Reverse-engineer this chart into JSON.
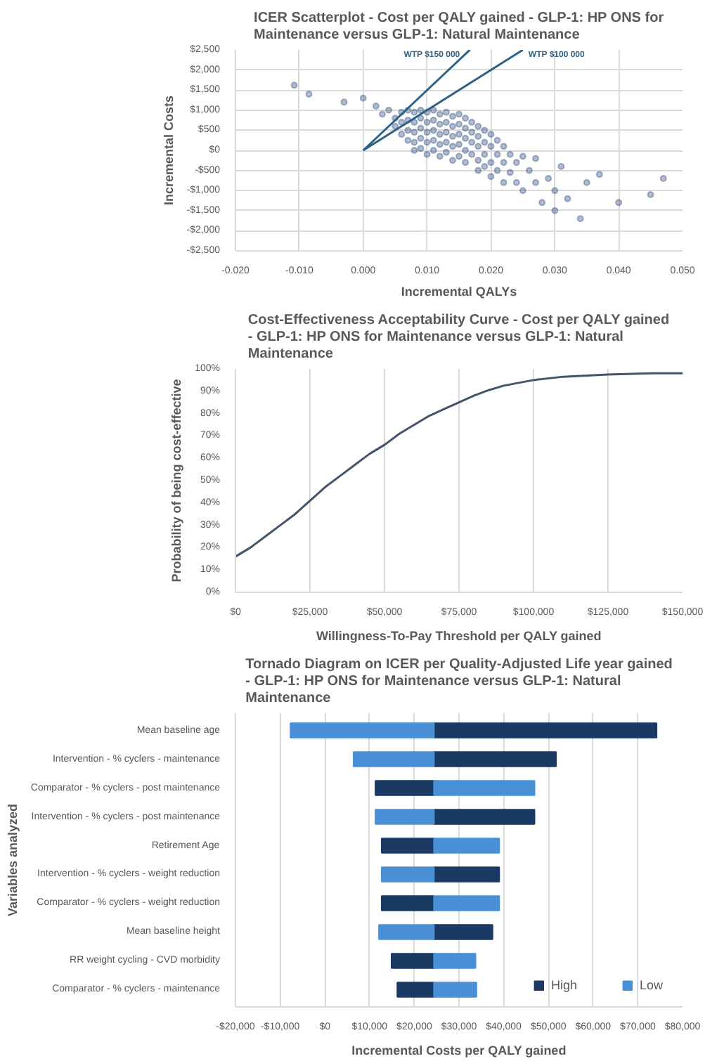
{
  "chart_data": [
    {
      "type": "scatter",
      "title": "ICER Scatterplot - Cost per QALY gained - GLP-1: HP ONS for Maintenance versus GLP-1: Natural Maintenance",
      "xlabel": "Incremental QALYs",
      "ylabel": "Incremental Costs",
      "grid": true,
      "xlim": [
        -0.02,
        0.05
      ],
      "xticks": [
        {
          "value": -0.02,
          "label": "-0.020"
        },
        {
          "value": -0.01,
          "label": "-0.010"
        },
        {
          "value": 0,
          "label": "0.000"
        },
        {
          "value": 0.01,
          "label": "0.010"
        },
        {
          "value": 0.02,
          "label": "0.020"
        },
        {
          "value": 0.03,
          "label": "0.030"
        },
        {
          "value": 0.04,
          "label": "0.040"
        },
        {
          "value": 0.05,
          "label": "0.050"
        }
      ],
      "ylim": [
        -2500,
        2500
      ],
      "yticks": [
        {
          "value": -2500,
          "label": "-$2,500"
        },
        {
          "value": -2000,
          "label": "-$2,000"
        },
        {
          "value": -1500,
          "label": "-$1,500"
        },
        {
          "value": -1000,
          "label": "-$1,000"
        },
        {
          "value": -500,
          "label": "-$500"
        },
        {
          "value": 0,
          "label": "$0"
        },
        {
          "value": 500,
          "label": "$500"
        },
        {
          "value": 1000,
          "label": "$1,000"
        },
        {
          "value": 1500,
          "label": "$1,500"
        },
        {
          "value": 2000,
          "label": "$2,000"
        },
        {
          "value": 2500,
          "label": "$2,500"
        }
      ],
      "series": [
        {
          "type": "scatter",
          "marker": "circle",
          "color": "#1f3f75",
          "x": [
            -0.0108,
            -0.0085,
            -0.003,
            0.0,
            0.002,
            0.003,
            0.004,
            0.005,
            0.005,
            0.006,
            0.006,
            0.006,
            0.007,
            0.007,
            0.007,
            0.007,
            0.008,
            0.008,
            0.008,
            0.008,
            0.008,
            0.009,
            0.009,
            0.009,
            0.009,
            0.009,
            0.01,
            0.01,
            0.01,
            0.01,
            0.01,
            0.011,
            0.011,
            0.011,
            0.011,
            0.011,
            0.012,
            0.012,
            0.012,
            0.012,
            0.012,
            0.013,
            0.013,
            0.013,
            0.013,
            0.013,
            0.014,
            0.014,
            0.014,
            0.014,
            0.014,
            0.015,
            0.015,
            0.015,
            0.015,
            0.015,
            0.016,
            0.016,
            0.016,
            0.016,
            0.016,
            0.017,
            0.017,
            0.017,
            0.017,
            0.018,
            0.018,
            0.018,
            0.018,
            0.018,
            0.019,
            0.019,
            0.019,
            0.019,
            0.02,
            0.02,
            0.02,
            0.02,
            0.021,
            0.021,
            0.021,
            0.022,
            0.022,
            0.022,
            0.023,
            0.023,
            0.024,
            0.024,
            0.025,
            0.025,
            0.026,
            0.027,
            0.027,
            0.028,
            0.029,
            0.03,
            0.03,
            0.031,
            0.032,
            0.034,
            0.035,
            0.037,
            0.04,
            0.045,
            0.047
          ],
          "values": [
            1620,
            1400,
            1200,
            1300,
            1100,
            900,
            1000,
            800,
            600,
            950,
            700,
            400,
            1000,
            750,
            500,
            250,
            950,
            700,
            450,
            200,
            0,
            1000,
            800,
            550,
            300,
            50,
            950,
            700,
            450,
            200,
            -100,
            1000,
            750,
            500,
            250,
            0,
            900,
            650,
            400,
            150,
            -150,
            950,
            700,
            450,
            200,
            -50,
            850,
            600,
            350,
            100,
            -250,
            900,
            650,
            400,
            150,
            -150,
            800,
            550,
            300,
            0,
            -300,
            700,
            450,
            200,
            -100,
            600,
            350,
            100,
            -250,
            -500,
            500,
            200,
            -100,
            -400,
            400,
            100,
            -300,
            -650,
            250,
            -100,
            -500,
            100,
            -300,
            -800,
            -100,
            -550,
            -300,
            -800,
            -150,
            -1000,
            -500,
            -800,
            -200,
            -1300,
            -700,
            -1000,
            -1500,
            -400,
            -1200,
            -1700,
            -800,
            -600,
            -1300,
            -1100,
            -700
          ]
        },
        {
          "type": "line",
          "name": "WTP $150 000",
          "color": "#2e6285",
          "x": [
            0,
            0.0167
          ],
          "values": [
            0,
            2500
          ]
        },
        {
          "type": "line",
          "name": "WTP $100 000",
          "color": "#2e6285",
          "x": [
            0,
            0.025
          ],
          "values": [
            0,
            2500
          ]
        }
      ]
    },
    {
      "type": "line",
      "title": "Cost-Effectiveness Acceptability Curve - Cost per QALY gained - GLP-1: HP ONS for Maintenance versus GLP-1: Natural Maintenance",
      "xlabel": "Willingness-To-Pay Threshold per QALY gained",
      "ylabel": "Probability of being cost-effective",
      "grid": "x",
      "xlim": [
        0,
        150000
      ],
      "xticks": [
        {
          "value": 0,
          "label": "$0"
        },
        {
          "value": 25000,
          "label": "$25,000"
        },
        {
          "value": 50000,
          "label": "$50,000"
        },
        {
          "value": 75000,
          "label": "$75,000"
        },
        {
          "value": 100000,
          "label": "$100,000"
        },
        {
          "value": 125000,
          "label": "$125,000"
        },
        {
          "value": 150000,
          "label": "$150,000"
        }
      ],
      "ylim": [
        0,
        100
      ],
      "yticks": [
        {
          "value": 0,
          "label": "0%"
        },
        {
          "value": 10,
          "label": "10%"
        },
        {
          "value": 20,
          "label": "20%"
        },
        {
          "value": 30,
          "label": "30%"
        },
        {
          "value": 40,
          "label": "40%"
        },
        {
          "value": 50,
          "label": "50%"
        },
        {
          "value": 60,
          "label": "60%"
        },
        {
          "value": 70,
          "label": "70%"
        },
        {
          "value": 80,
          "label": "80%"
        },
        {
          "value": 90,
          "label": "90%"
        },
        {
          "value": 100,
          "label": "100%"
        }
      ],
      "series": [
        {
          "color": "#44546a",
          "x": [
            0,
            5000,
            10000,
            15000,
            20000,
            25000,
            30000,
            35000,
            40000,
            45000,
            50000,
            55000,
            60000,
            65000,
            70000,
            75000,
            80000,
            85000,
            90000,
            100000,
            110000,
            125000,
            140000,
            150000
          ],
          "values": [
            16,
            20,
            25,
            30,
            35,
            41,
            47,
            52,
            57,
            62,
            66,
            71,
            75,
            79,
            82,
            85,
            88,
            90.5,
            92.5,
            95,
            96.5,
            97.5,
            98,
            98
          ]
        }
      ]
    },
    {
      "type": "bar",
      "orientation": "horizontal",
      "title": "Tornado Diagram on ICER per Quality-Adjusted Life year gained - GLP-1: HP ONS for Maintenance versus GLP-1: Natural Maintenance",
      "xlabel": "Incremental Costs per QALY gained",
      "ylabel": "Variables analyzed",
      "grid": "x",
      "legend": "bottom right",
      "categories": [
        "Mean baseline age",
        "Intervention - % cyclers - maintenance",
        "Comparator - % cyclers - post maintenance",
        "Intervention - % cyclers - post maintenance",
        "Retirement Age",
        "Intervention - % cyclers - weight reduction",
        "Comparator - % cyclers - weight reduction",
        "Mean baseline height",
        "RR weight cycling - CVD morbidity",
        "Comparator - % cyclers - maintenance"
      ],
      "xlim": [
        -20000,
        80000
      ],
      "xticks": [
        {
          "value": -20000,
          "label": "-$20,000"
        },
        {
          "value": -10000,
          "label": "-$10,000"
        },
        {
          "value": 0,
          "label": "$0"
        },
        {
          "value": 10000,
          "label": "$10,000"
        },
        {
          "value": 20000,
          "label": "$20,000"
        },
        {
          "value": 30000,
          "label": "$30,000"
        },
        {
          "value": 40000,
          "label": "$40,000"
        },
        {
          "value": 50000,
          "label": "$50,000"
        },
        {
          "value": 60000,
          "label": "$60,000"
        },
        {
          "value": 70000,
          "label": "$70,000"
        },
        {
          "value": 80000,
          "label": "$80,000"
        }
      ],
      "series": [
        {
          "name": "High",
          "color": "#1a3a63",
          "base": [
            24400,
            24400,
            11300,
            24400,
            12700,
            24400,
            12700,
            24400,
            14900,
            16200
          ],
          "values": [
            49800,
            27300,
            13100,
            22500,
            11700,
            14600,
            11700,
            13100,
            9500,
            8200
          ]
        },
        {
          "name": "Low",
          "color": "#4a90d6",
          "base": [
            -7700,
            6400,
            24400,
            11300,
            24400,
            12700,
            24400,
            12100,
            24400,
            24400
          ],
          "values": [
            32100,
            18000,
            22500,
            13100,
            14600,
            11700,
            14600,
            12300,
            9300,
            9500
          ]
        }
      ]
    }
  ]
}
